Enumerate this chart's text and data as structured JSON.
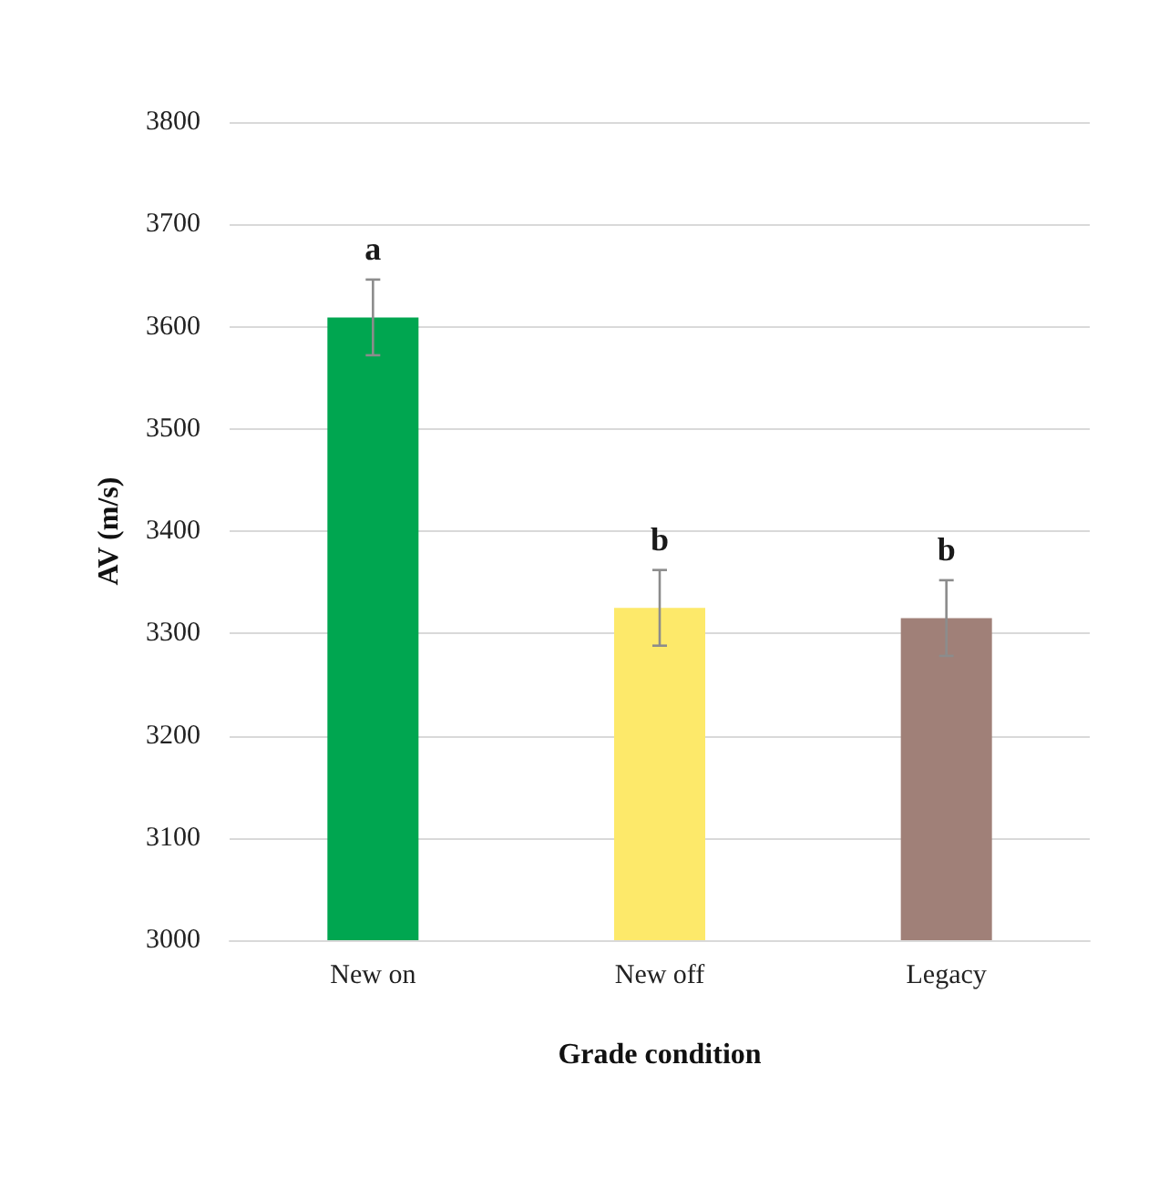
{
  "chart_data": {
    "type": "bar",
    "xlabel": "Grade condition",
    "ylabel": "AV (m/s)",
    "categories": [
      "New on",
      "New off",
      "Legacy"
    ],
    "values": [
      3609,
      3325,
      3315
    ],
    "colors": [
      "#00a650",
      "#fde96a",
      "#a08078"
    ],
    "errors": [
      37,
      37,
      37
    ],
    "ylim": [
      3000,
      3800
    ],
    "yticks": [
      3000,
      3100,
      3200,
      3300,
      3400,
      3500,
      3600,
      3700,
      3800
    ],
    "grid": "y",
    "annotations": [
      "a",
      "b",
      "b"
    ]
  }
}
